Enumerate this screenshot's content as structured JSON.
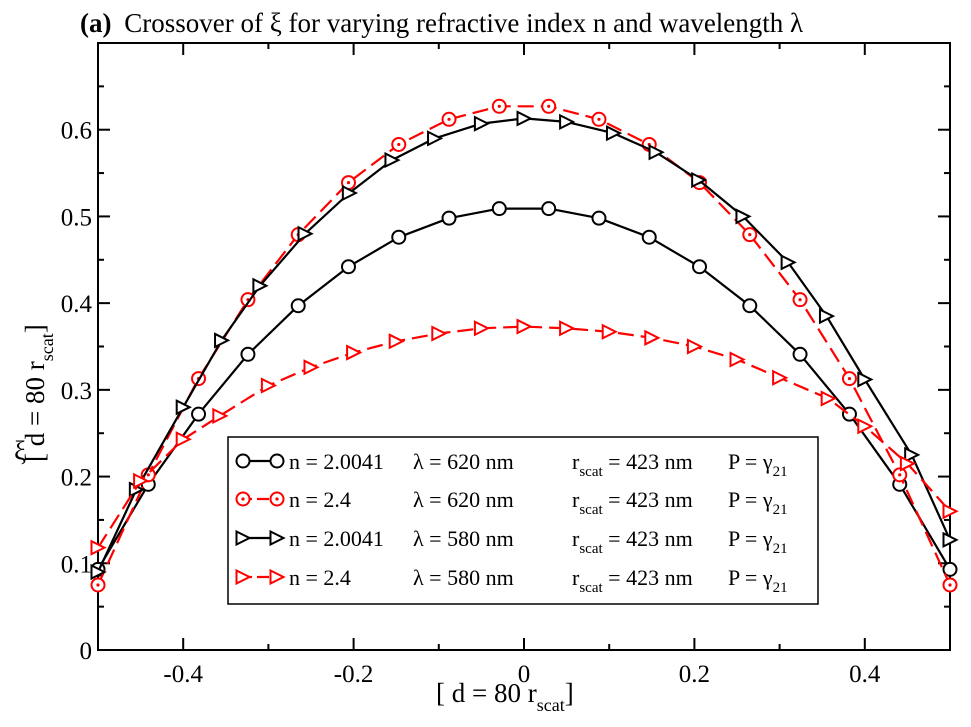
{
  "chart_data": {
    "type": "line",
    "title_bold": "(a)",
    "title_rest": "Crossover of ξ for varying refractive index n and wavelength λ",
    "xlabel_main": "[ d = 80 r",
    "xlabel_sub": "scat",
    "xlabel_end": "]",
    "ylabel_symbol": "ξ",
    "ylabel_main": "[ d = 80 r",
    "ylabel_sub": "scat",
    "ylabel_end": "]",
    "xlim": [
      -0.5,
      0.5
    ],
    "ylim": [
      0,
      0.7
    ],
    "x_ticks": [
      -0.4,
      -0.2,
      0,
      0.2,
      0.4
    ],
    "x_tick_labels": [
      "-0.4",
      "-0.2",
      "0",
      "0.2",
      "0.4"
    ],
    "y_ticks": [
      0,
      0.1,
      0.2,
      0.3,
      0.4,
      0.5,
      0.6
    ],
    "y_tick_labels": [
      "0",
      "0.1",
      "0.2",
      "0.3",
      "0.4",
      "0.5",
      "0.6"
    ],
    "legend_position": "lower-center",
    "series": [
      {
        "name": "s1",
        "n_label": "n = 2.0041",
        "lambda_label": "λ = 620 nm",
        "r_main": "r",
        "r_sub": "scat",
        "r_value": " = 423 nm",
        "p_main": "P = γ",
        "p_sub": "21",
        "color": "#000000",
        "marker": "circle",
        "dashed": false,
        "x": [
          -0.5,
          -0.441,
          -0.382,
          -0.324,
          -0.265,
          -0.206,
          -0.147,
          -0.088,
          -0.029,
          0.029,
          0.088,
          0.147,
          0.206,
          0.265,
          0.324,
          0.382,
          0.441,
          0.5
        ],
        "values": [
          0.093,
          0.191,
          0.272,
          0.341,
          0.397,
          0.442,
          0.476,
          0.498,
          0.509,
          0.509,
          0.498,
          0.476,
          0.442,
          0.397,
          0.341,
          0.272,
          0.191,
          0.093
        ]
      },
      {
        "name": "s2",
        "n_label": "n = 2.4",
        "lambda_label": "λ = 620 nm",
        "r_main": "r",
        "r_sub": "scat",
        "r_value": " = 423 nm",
        "p_main": "P = γ",
        "p_sub": "21",
        "color": "#ff0000",
        "marker": "circle-dot",
        "dashed": true,
        "x": [
          -0.5,
          -0.441,
          -0.382,
          -0.324,
          -0.265,
          -0.206,
          -0.147,
          -0.088,
          -0.029,
          0.029,
          0.088,
          0.147,
          0.206,
          0.265,
          0.324,
          0.382,
          0.441,
          0.5
        ],
        "values": [
          0.075,
          0.202,
          0.313,
          0.404,
          0.479,
          0.539,
          0.583,
          0.612,
          0.627,
          0.627,
          0.612,
          0.583,
          0.539,
          0.479,
          0.404,
          0.313,
          0.202,
          0.075
        ]
      },
      {
        "name": "s3",
        "n_label": "n = 2.0041",
        "lambda_label": "λ = 580 nm",
        "r_main": "r",
        "r_sub": "scat",
        "r_value": " = 423 nm",
        "p_main": "P = γ",
        "p_sub": "21",
        "color": "#000000",
        "marker": "triangle-right",
        "dashed": false,
        "x": [
          -0.5,
          -0.455,
          -0.4,
          -0.355,
          -0.31,
          -0.257,
          -0.205,
          -0.155,
          -0.105,
          -0.05,
          0,
          0.05,
          0.105,
          0.155,
          0.205,
          0.257,
          0.31,
          0.355,
          0.4,
          0.455,
          0.5
        ],
        "values": [
          0.09,
          0.185,
          0.28,
          0.357,
          0.42,
          0.48,
          0.527,
          0.565,
          0.59,
          0.607,
          0.613,
          0.609,
          0.596,
          0.574,
          0.542,
          0.5,
          0.447,
          0.385,
          0.312,
          0.225,
          0.127
        ]
      },
      {
        "name": "s4",
        "n_label": "n = 2.4",
        "lambda_label": "λ = 580 nm",
        "r_main": "r",
        "r_sub": "scat",
        "r_value": " = 423 nm",
        "p_main": "P = γ",
        "p_sub": "21",
        "color": "#ff0000",
        "marker": "triangle-right",
        "dashed": true,
        "x": [
          -0.5,
          -0.45,
          -0.4,
          -0.357,
          -0.3,
          -0.25,
          -0.2,
          -0.15,
          -0.1,
          -0.05,
          0,
          0.05,
          0.1,
          0.15,
          0.2,
          0.25,
          0.3,
          0.357,
          0.4,
          0.45,
          0.5
        ],
        "values": [
          0.118,
          0.195,
          0.243,
          0.27,
          0.305,
          0.326,
          0.343,
          0.356,
          0.365,
          0.371,
          0.373,
          0.371,
          0.367,
          0.36,
          0.35,
          0.335,
          0.314,
          0.29,
          0.258,
          0.215,
          0.16
        ]
      }
    ]
  }
}
